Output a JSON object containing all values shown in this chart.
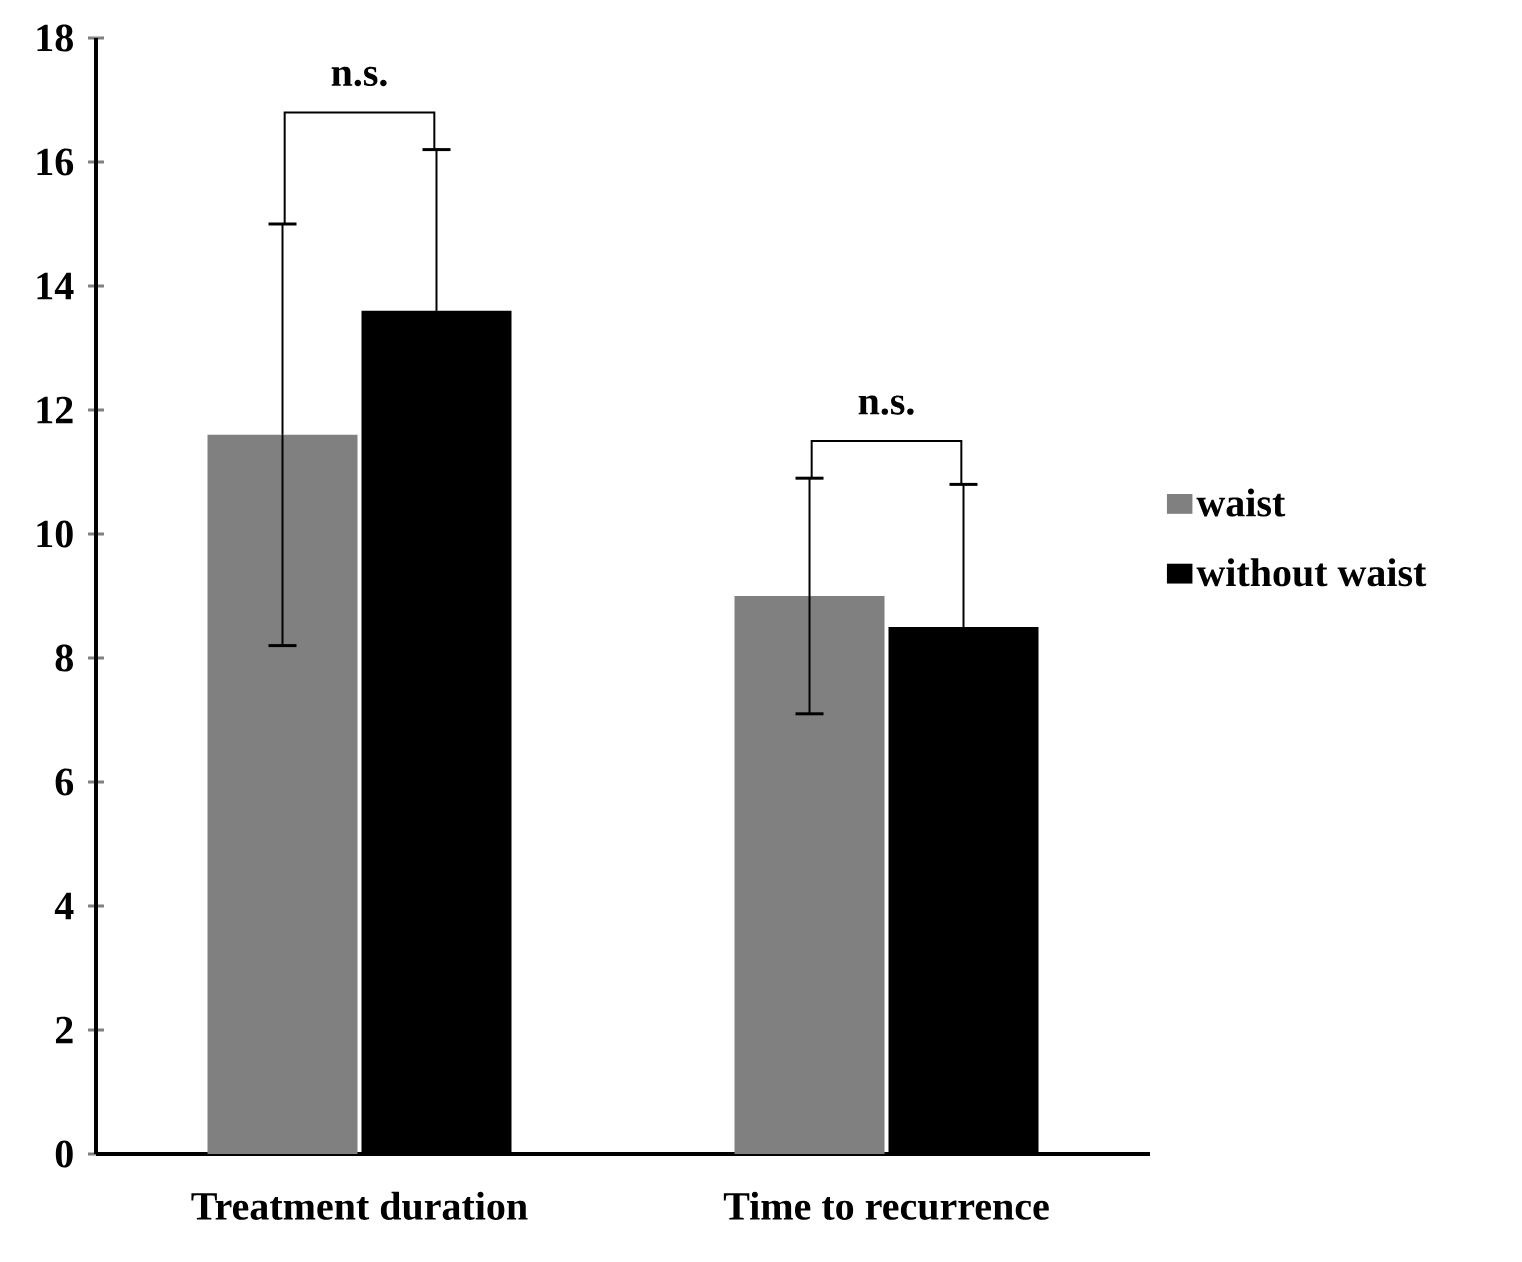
{
  "chart_data": {
    "type": "bar",
    "categories": [
      "Treatment duration",
      "Time to recurrence"
    ],
    "series": [
      {
        "name": "waist",
        "color": "#808080",
        "values": [
          11.6,
          9.0
        ],
        "errors": [
          3.4,
          1.9
        ]
      },
      {
        "name": "without waist",
        "color": "#000000",
        "values": [
          13.6,
          8.5
        ],
        "errors": [
          2.6,
          2.3
        ]
      }
    ],
    "ylim": [
      0,
      18
    ],
    "yticks": [
      0,
      2,
      4,
      6,
      8,
      10,
      12,
      14,
      16,
      18
    ],
    "annotations": [
      "n.s.",
      "n.s."
    ],
    "legend": "right"
  }
}
